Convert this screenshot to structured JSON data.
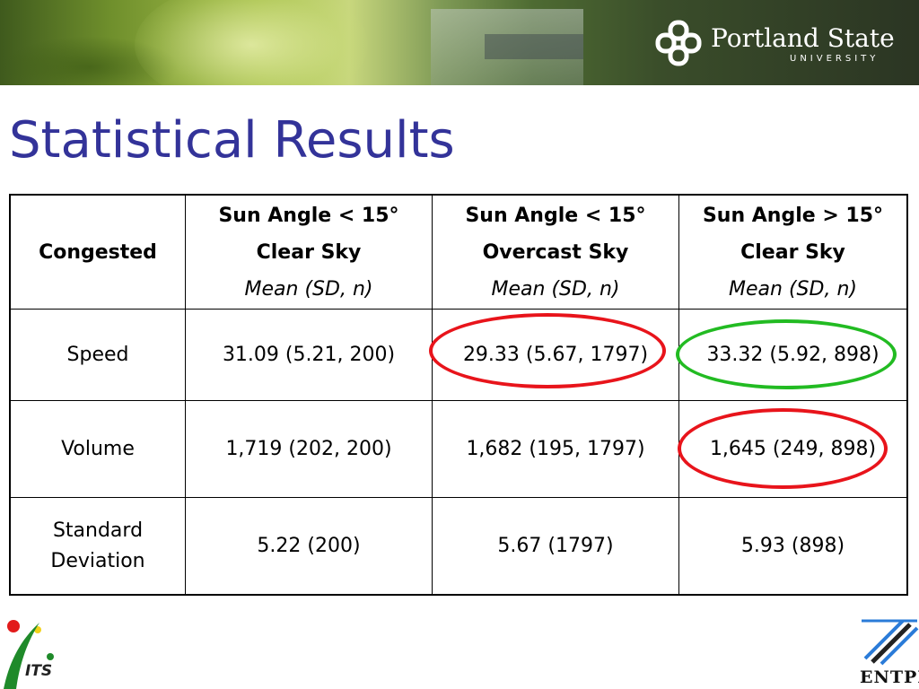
{
  "header": {
    "university_name": "Portland State",
    "university_sub": "UNIVERSITY",
    "logo_icon": "psu-knot-icon"
  },
  "title": "Statistical Results",
  "table": {
    "corner": "Congested",
    "columns": [
      {
        "line1": "Sun Angle < 15°",
        "line2": "Clear Sky",
        "line3": "Mean (SD, n)"
      },
      {
        "line1": "Sun Angle < 15°",
        "line2": "Overcast Sky",
        "line3": "Mean (SD, n)"
      },
      {
        "line1": "Sun Angle > 15°",
        "line2": "Clear Sky",
        "line3": "Mean (SD, n)"
      }
    ],
    "rows": [
      {
        "label": "Speed",
        "cells": [
          "31.09 (5.21, 200)",
          "29.33 (5.67, 1797)",
          "33.32 (5.92, 898)"
        ]
      },
      {
        "label": "Volume",
        "cells": [
          "1,719 (202, 200)",
          "1,682 (195, 1797)",
          "1,645 (249, 898)"
        ]
      },
      {
        "label_lines": [
          "Standard",
          "Deviation"
        ],
        "cells": [
          "5.22 (200)",
          "5.67 (1797)",
          "5.93 (898)"
        ]
      }
    ]
  },
  "highlights": {
    "red": "#e8141b",
    "green": "#22bb22"
  },
  "footer": {
    "its_label": "ITS",
    "entpe_label": "ENTPE"
  },
  "colors": {
    "title": "#333399"
  }
}
